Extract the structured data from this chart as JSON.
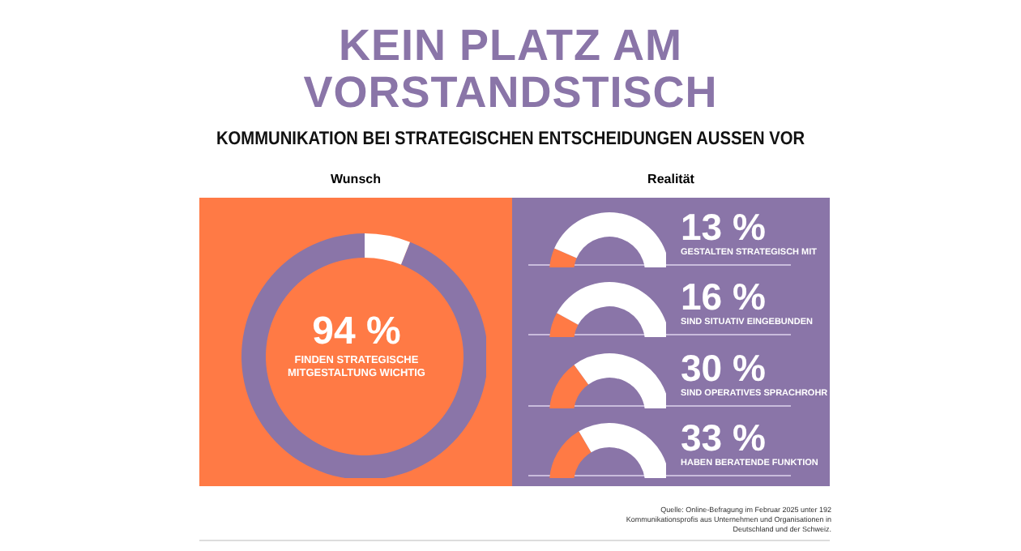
{
  "chart_data": [
    {
      "type": "donut",
      "title": "KEIN PLATZ AM VORSTANDSTISCH",
      "subtitle": "KOMMUNIKATION BEI STRATEGISCHEN ENTSCHEIDUNGEN AUSSEN VOR",
      "categories": [
        null,
        null
      ],
      "values": [
        94,
        6
      ],
      "colors": [
        "#8a75a8",
        "#ffffff"
      ],
      "value_labels": [
        "94 %",
        null
      ],
      "annotations": [
        "Wunsch",
        "FINDEN STRATEGISCHE MITGESTALTUNG WICHTIG"
      ]
    },
    {
      "type": "donut",
      "categories": [
        null,
        null
      ],
      "values": [
        13,
        87
      ],
      "colors": [
        "#ff7a45",
        "#ffffff"
      ],
      "annotations": [
        "13 %",
        "GESTALTEN STRATEGISCH MIT",
        "Realität"
      ]
    },
    {
      "type": "donut",
      "categories": [
        null,
        null
      ],
      "values": [
        16,
        84
      ],
      "colors": [
        "#ff7a45",
        "#ffffff"
      ],
      "annotations": [
        "16 %",
        "SIND SITUATIV EINGEBUNDEN"
      ]
    },
    {
      "type": "donut",
      "categories": [
        null,
        null
      ],
      "values": [
        30,
        70
      ],
      "colors": [
        "#ff7a45",
        "#ffffff"
      ],
      "annotations": [
        "30 %",
        "SIND OPERATIVES SPRACHROHR"
      ]
    },
    {
      "type": "donut",
      "categories": [
        null,
        null
      ],
      "values": [
        33,
        67
      ],
      "colors": [
        "#ff7a45",
        "#ffffff"
      ],
      "annotations": [
        "33 %",
        "HABEN BERATENDE FUNKTION",
        "Quelle: Online-Befragung im Februar 2025 unter 192 Kommunikationsprofis aus Unternehmen und Organisationen in Deutschland und der Schweiz."
      ]
    }
  ]
}
